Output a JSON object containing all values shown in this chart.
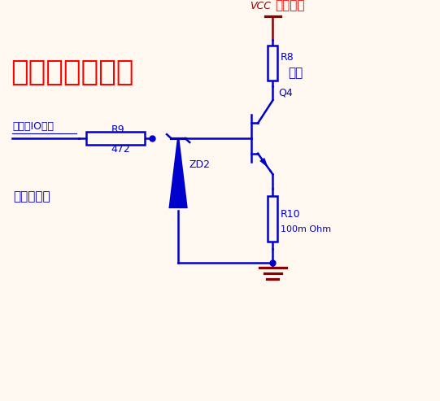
{
  "title": "稳压管恒流电路",
  "title_color": "#FF0000",
  "title_fontsize": 26,
  "bg_color": "#FFF8F0",
  "circuit_color": "#0000CC",
  "label_color_blue": "#0000CC",
  "label_color_red": "#FF0000",
  "label_color_brown": "#8B0000",
  "vcc_label": "VCC",
  "vcc_sublabel": "可变电源",
  "r8_label": "R8",
  "r8_sublabel": "负载",
  "r9_label": "R9",
  "r9_sublabel": "472",
  "r10_label": "R10",
  "r10_sublabel": "100m Ohm",
  "q4_label": "Q4",
  "zd2_label": "ZD2",
  "io_label": "单片机IO引脚",
  "zener_label": "稳压二极管",
  "line_width": 1.8
}
